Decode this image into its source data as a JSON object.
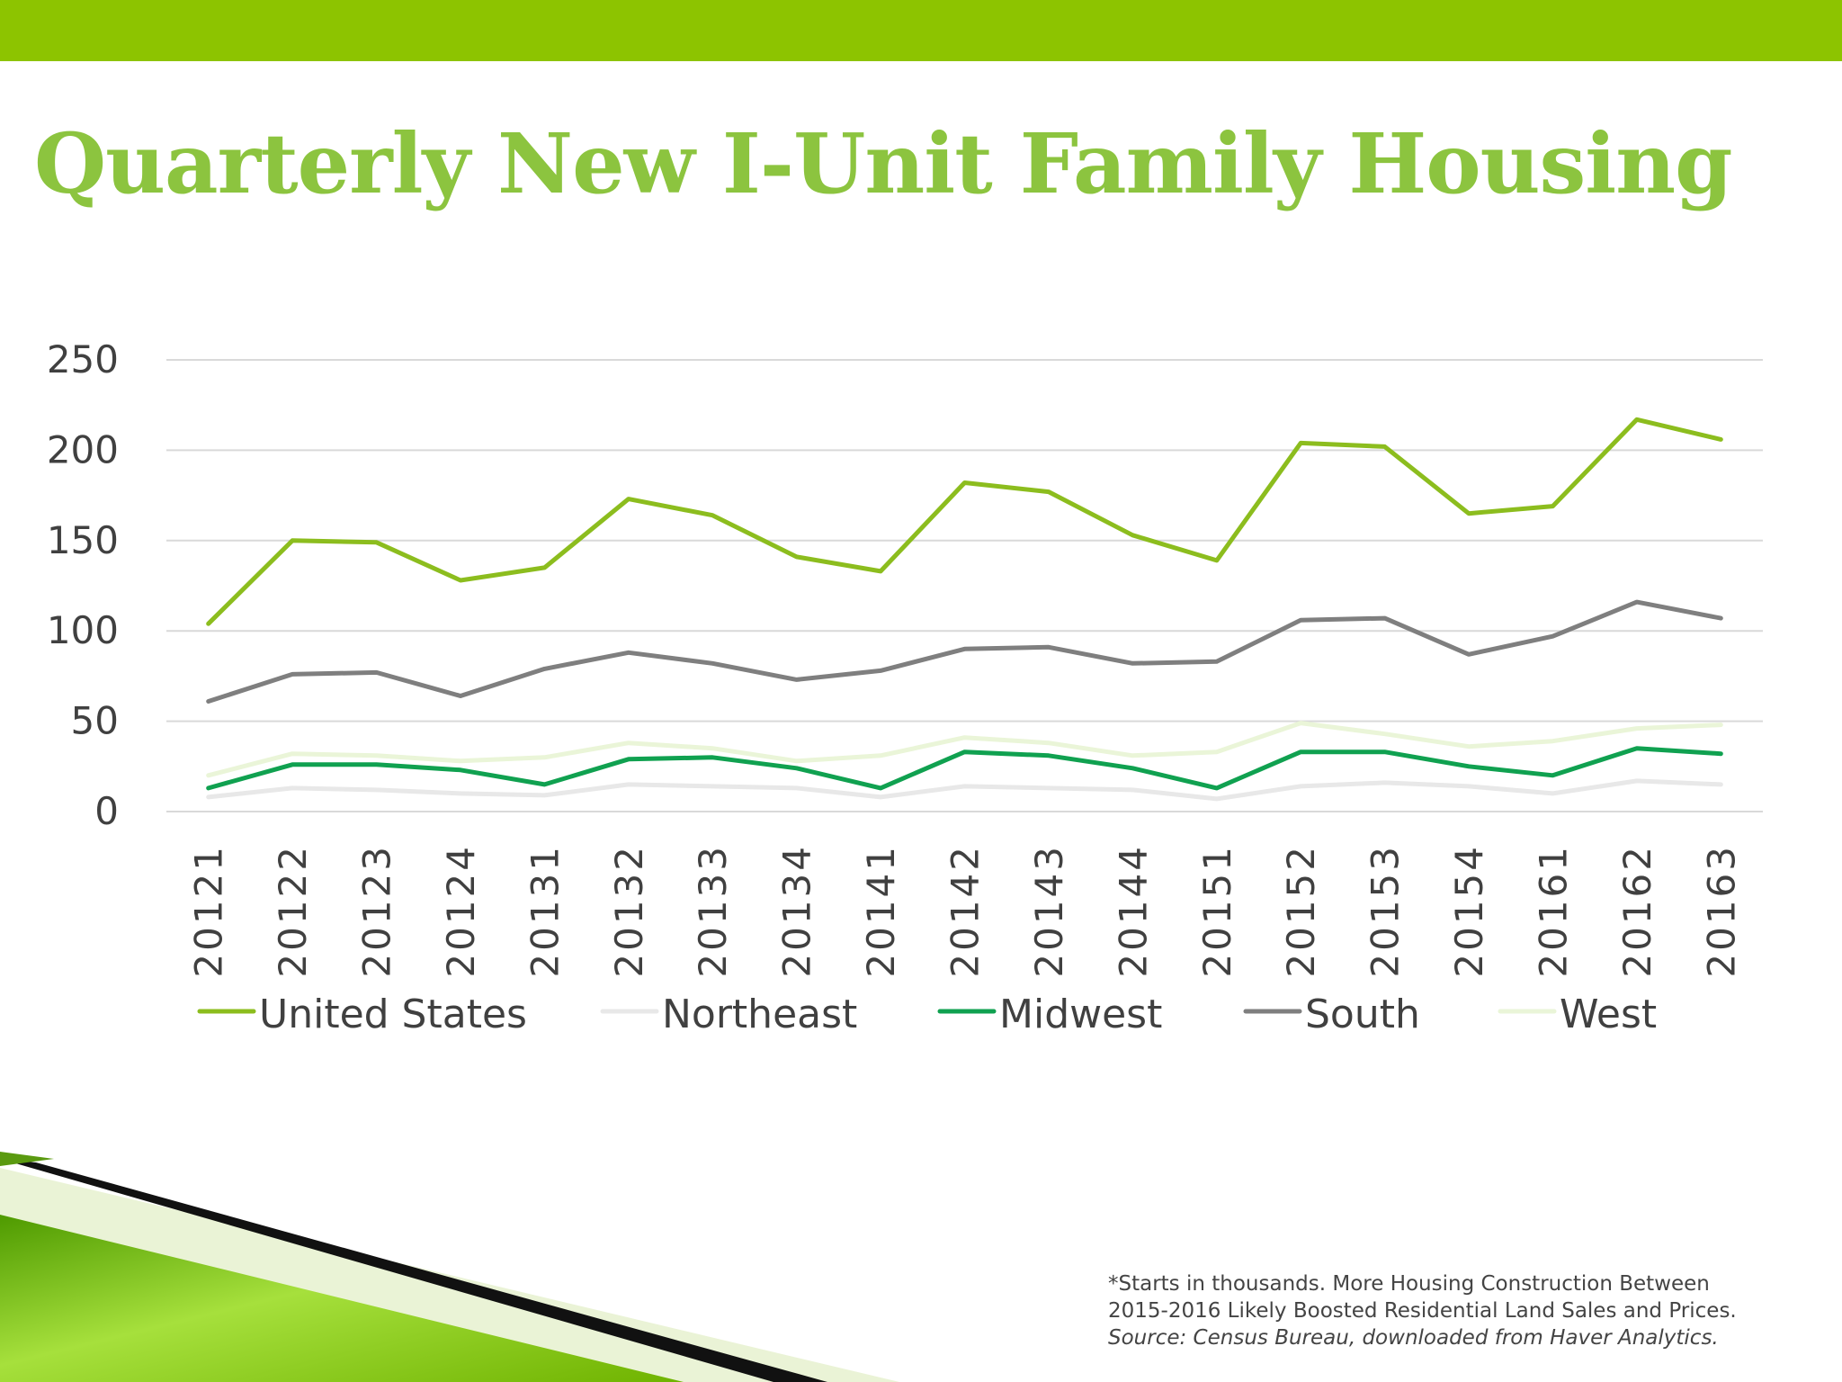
{
  "slide": {
    "title": "Quarterly New I-Unit Family Housing",
    "footnote_line1": "*Starts in thousands. More Housing Construction Between",
    "footnote_line2": "2015-2016 Likely Boosted Residential Land Sales and Prices.",
    "footnote_source": "Source: Census Bureau, downloaded from Haver Analytics."
  },
  "colors": {
    "top_bar": "#8dc400",
    "title": "#8cc43f",
    "gridline": "#d9d9d9",
    "axis_text": "#404040"
  },
  "chart_data": {
    "type": "line",
    "title": "",
    "xlabel": "",
    "ylabel": "",
    "ylim": [
      0,
      250
    ],
    "yticks": [
      0,
      50,
      100,
      150,
      200,
      250
    ],
    "grid": true,
    "legend_position": "bottom",
    "categories": [
      "20121",
      "20122",
      "20123",
      "20124",
      "20131",
      "20132",
      "20133",
      "20134",
      "20141",
      "20142",
      "20143",
      "20144",
      "20151",
      "20152",
      "20153",
      "20154",
      "20161",
      "20162",
      "20163"
    ],
    "series": [
      {
        "name": "United States",
        "color": "#8cbd1e",
        "values": [
          104,
          150,
          149,
          128,
          135,
          173,
          164,
          141,
          133,
          182,
          177,
          153,
          139,
          204,
          202,
          165,
          169,
          217,
          206
        ]
      },
      {
        "name": "Northeast",
        "color": "#e8e8e8",
        "values": [
          8,
          13,
          12,
          10,
          9,
          15,
          14,
          13,
          8,
          14,
          13,
          12,
          7,
          14,
          16,
          14,
          10,
          17,
          15
        ]
      },
      {
        "name": "Midwest",
        "color": "#10a150",
        "values": [
          13,
          26,
          26,
          23,
          15,
          29,
          30,
          24,
          13,
          33,
          31,
          24,
          13,
          33,
          33,
          25,
          20,
          35,
          32
        ]
      },
      {
        "name": "South",
        "color": "#7f7f7f",
        "values": [
          61,
          76,
          77,
          64,
          79,
          88,
          82,
          73,
          78,
          90,
          91,
          82,
          83,
          106,
          107,
          87,
          97,
          116,
          107
        ]
      },
      {
        "name": "West",
        "color": "#eaf5d8",
        "values": [
          20,
          32,
          31,
          28,
          30,
          38,
          35,
          28,
          31,
          41,
          38,
          31,
          33,
          49,
          43,
          36,
          39,
          46,
          48
        ]
      }
    ]
  }
}
